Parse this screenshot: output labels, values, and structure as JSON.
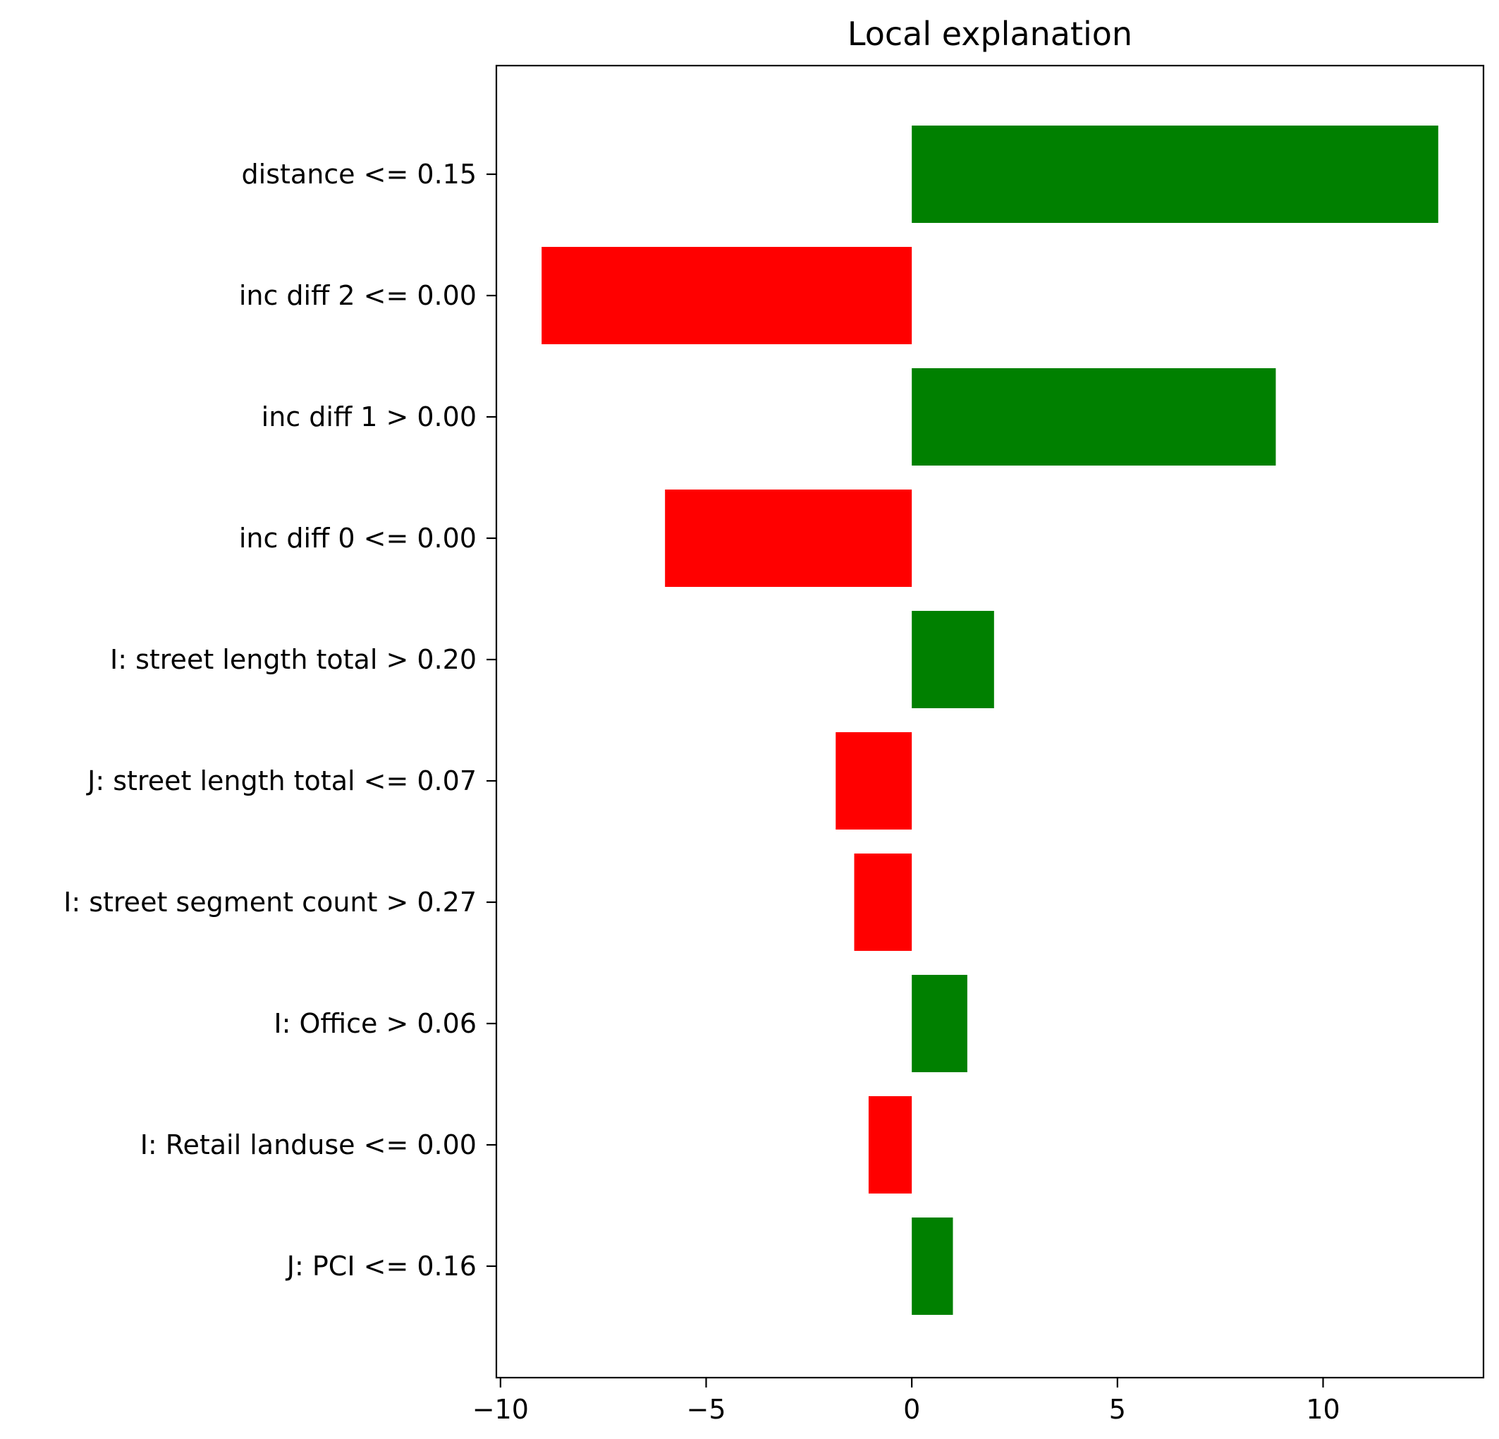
{
  "chart_data": {
    "type": "bar",
    "orientation": "horizontal",
    "title": "Local explanation",
    "xlabel": "",
    "ylabel": "",
    "xlim": [
      -10.1,
      13.9
    ],
    "xticks": [
      -10,
      -5,
      0,
      5,
      10
    ],
    "xtick_labels": [
      "−10",
      "−5",
      "0",
      "5",
      "10"
    ],
    "grid": false,
    "legend": "none",
    "colors": {
      "positive": "#008000",
      "negative": "#ff0000"
    },
    "categories": [
      "distance <= 0.15",
      "inc diff 2 <= 0.00",
      "inc diff 1 > 0.00",
      "inc diff 0 <= 0.00",
      "I: street length total > 0.20",
      "J: street length total <= 0.07",
      "I: street segment count > 0.27",
      "I: Office > 0.06",
      "I: Retail landuse <= 0.00",
      "J: PCI <= 0.16"
    ],
    "values": [
      12.8,
      -9.0,
      8.85,
      -6.0,
      2.0,
      -1.85,
      -1.4,
      1.35,
      -1.05,
      1.0
    ]
  }
}
